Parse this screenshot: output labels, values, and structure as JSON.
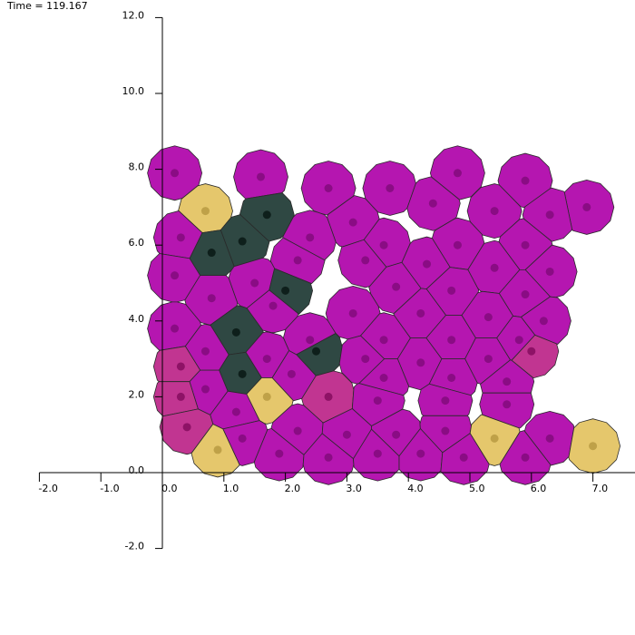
{
  "time_text": "Time = 119.167",
  "axes": {
    "x_tick_labels": [
      "-2.0",
      "-1.0",
      "0.0",
      "1.0",
      "2.0",
      "3.0",
      "4.0",
      "5.0",
      "6.0",
      "7.0"
    ],
    "y_tick_labels": [
      "12.0",
      "10.0",
      "8.0",
      "6.0",
      "4.0",
      "2.0",
      "0.0",
      "-2.0"
    ],
    "x_ticks": [
      -2,
      -1,
      0,
      1,
      2,
      3,
      4,
      5,
      6,
      7
    ],
    "y_ticks": [
      12,
      10,
      8,
      6,
      4,
      2,
      0,
      -2
    ],
    "x_range": [
      -2,
      7.8
    ],
    "y_range": [
      -2,
      12
    ]
  },
  "colors": {
    "magenta": "#b516b0",
    "pink": "#c13591",
    "dark": "#2f4843",
    "yellow": "#e5c76c",
    "cell_edge": "#2a2a2a",
    "nucleus_magenta": "#8a0c84",
    "nucleus_dark": "#0e1f1b",
    "nucleus_yellow": "#bfa148",
    "nucleus_pink": "#8e1266"
  },
  "chart_data": {
    "type": "scatter",
    "title": "",
    "xlabel": "",
    "ylabel": "",
    "xlim": [
      -2,
      7.8
    ],
    "ylim": [
      -2,
      12
    ],
    "cells": [
      {
        "x": 0.2,
        "y": 7.9,
        "t": "magenta"
      },
      {
        "x": 1.6,
        "y": 7.8,
        "t": "magenta"
      },
      {
        "x": 2.7,
        "y": 7.5,
        "t": "magenta"
      },
      {
        "x": 3.7,
        "y": 7.5,
        "t": "magenta"
      },
      {
        "x": 4.8,
        "y": 7.9,
        "t": "magenta"
      },
      {
        "x": 5.9,
        "y": 7.7,
        "t": "magenta"
      },
      {
        "x": 6.9,
        "y": 7.0,
        "t": "magenta"
      },
      {
        "x": 0.7,
        "y": 6.9,
        "t": "yellow"
      },
      {
        "x": 1.7,
        "y": 6.8,
        "t": "dark"
      },
      {
        "x": 3.1,
        "y": 6.6,
        "t": "magenta"
      },
      {
        "x": 4.4,
        "y": 7.1,
        "t": "magenta"
      },
      {
        "x": 5.4,
        "y": 6.9,
        "t": "magenta"
      },
      {
        "x": 6.3,
        "y": 6.8,
        "t": "magenta"
      },
      {
        "x": 0.3,
        "y": 6.2,
        "t": "magenta"
      },
      {
        "x": 1.3,
        "y": 6.1,
        "t": "dark"
      },
      {
        "x": 2.4,
        "y": 6.2,
        "t": "magenta"
      },
      {
        "x": 3.6,
        "y": 6.0,
        "t": "magenta"
      },
      {
        "x": 4.8,
        "y": 6.0,
        "t": "magenta"
      },
      {
        "x": 5.9,
        "y": 6.0,
        "t": "magenta"
      },
      {
        "x": 0.8,
        "y": 5.8,
        "t": "dark"
      },
      {
        "x": 2.2,
        "y": 5.6,
        "t": "magenta"
      },
      {
        "x": 3.3,
        "y": 5.6,
        "t": "magenta"
      },
      {
        "x": 4.3,
        "y": 5.5,
        "t": "magenta"
      },
      {
        "x": 5.4,
        "y": 5.4,
        "t": "magenta"
      },
      {
        "x": 6.3,
        "y": 5.3,
        "t": "magenta"
      },
      {
        "x": 0.2,
        "y": 5.2,
        "t": "magenta"
      },
      {
        "x": 1.5,
        "y": 5.0,
        "t": "magenta"
      },
      {
        "x": 2.0,
        "y": 4.8,
        "t": "dark"
      },
      {
        "x": 3.8,
        "y": 4.9,
        "t": "magenta"
      },
      {
        "x": 4.7,
        "y": 4.8,
        "t": "magenta"
      },
      {
        "x": 5.9,
        "y": 4.7,
        "t": "magenta"
      },
      {
        "x": 0.8,
        "y": 4.6,
        "t": "magenta"
      },
      {
        "x": 1.8,
        "y": 4.4,
        "t": "magenta"
      },
      {
        "x": 3.1,
        "y": 4.2,
        "t": "magenta"
      },
      {
        "x": 4.2,
        "y": 4.2,
        "t": "magenta"
      },
      {
        "x": 5.3,
        "y": 4.1,
        "t": "magenta"
      },
      {
        "x": 6.2,
        "y": 4.0,
        "t": "magenta"
      },
      {
        "x": 0.2,
        "y": 3.8,
        "t": "magenta"
      },
      {
        "x": 1.2,
        "y": 3.7,
        "t": "dark"
      },
      {
        "x": 2.4,
        "y": 3.5,
        "t": "magenta"
      },
      {
        "x": 3.6,
        "y": 3.5,
        "t": "magenta"
      },
      {
        "x": 4.7,
        "y": 3.5,
        "t": "magenta"
      },
      {
        "x": 5.8,
        "y": 3.5,
        "t": "magenta"
      },
      {
        "x": 0.7,
        "y": 3.2,
        "t": "magenta"
      },
      {
        "x": 1.7,
        "y": 3.0,
        "t": "magenta"
      },
      {
        "x": 2.5,
        "y": 3.2,
        "t": "dark"
      },
      {
        "x": 3.3,
        "y": 3.0,
        "t": "magenta"
      },
      {
        "x": 4.2,
        "y": 2.9,
        "t": "magenta"
      },
      {
        "x": 5.3,
        "y": 3.0,
        "t": "magenta"
      },
      {
        "x": 6.0,
        "y": 3.2,
        "t": "pink"
      },
      {
        "x": 0.3,
        "y": 2.8,
        "t": "pink"
      },
      {
        "x": 1.3,
        "y": 2.6,
        "t": "dark"
      },
      {
        "x": 2.1,
        "y": 2.6,
        "t": "magenta"
      },
      {
        "x": 3.6,
        "y": 2.5,
        "t": "magenta"
      },
      {
        "x": 4.7,
        "y": 2.5,
        "t": "magenta"
      },
      {
        "x": 5.6,
        "y": 2.4,
        "t": "magenta"
      },
      {
        "x": 0.7,
        "y": 2.2,
        "t": "magenta"
      },
      {
        "x": 1.7,
        "y": 2.0,
        "t": "yellow"
      },
      {
        "x": 2.7,
        "y": 2.0,
        "t": "pink"
      },
      {
        "x": 3.5,
        "y": 1.9,
        "t": "magenta"
      },
      {
        "x": 4.6,
        "y": 1.9,
        "t": "magenta"
      },
      {
        "x": 5.6,
        "y": 1.8,
        "t": "magenta"
      },
      {
        "x": 0.3,
        "y": 2.0,
        "t": "pink"
      },
      {
        "x": 1.2,
        "y": 1.6,
        "t": "magenta"
      },
      {
        "x": 0.4,
        "y": 1.2,
        "t": "pink"
      },
      {
        "x": 1.3,
        "y": 0.9,
        "t": "magenta"
      },
      {
        "x": 2.2,
        "y": 1.1,
        "t": "magenta"
      },
      {
        "x": 3.0,
        "y": 1.0,
        "t": "magenta"
      },
      {
        "x": 3.8,
        "y": 1.0,
        "t": "magenta"
      },
      {
        "x": 4.6,
        "y": 1.1,
        "t": "magenta"
      },
      {
        "x": 5.4,
        "y": 0.9,
        "t": "yellow"
      },
      {
        "x": 6.3,
        "y": 0.9,
        "t": "magenta"
      },
      {
        "x": 7.0,
        "y": 0.7,
        "t": "yellow"
      },
      {
        "x": 0.9,
        "y": 0.6,
        "t": "yellow"
      },
      {
        "x": 1.9,
        "y": 0.5,
        "t": "magenta"
      },
      {
        "x": 2.7,
        "y": 0.4,
        "t": "magenta"
      },
      {
        "x": 3.5,
        "y": 0.5,
        "t": "magenta"
      },
      {
        "x": 4.2,
        "y": 0.5,
        "t": "magenta"
      },
      {
        "x": 4.9,
        "y": 0.4,
        "t": "magenta"
      },
      {
        "x": 5.9,
        "y": 0.4,
        "t": "magenta"
      }
    ]
  }
}
